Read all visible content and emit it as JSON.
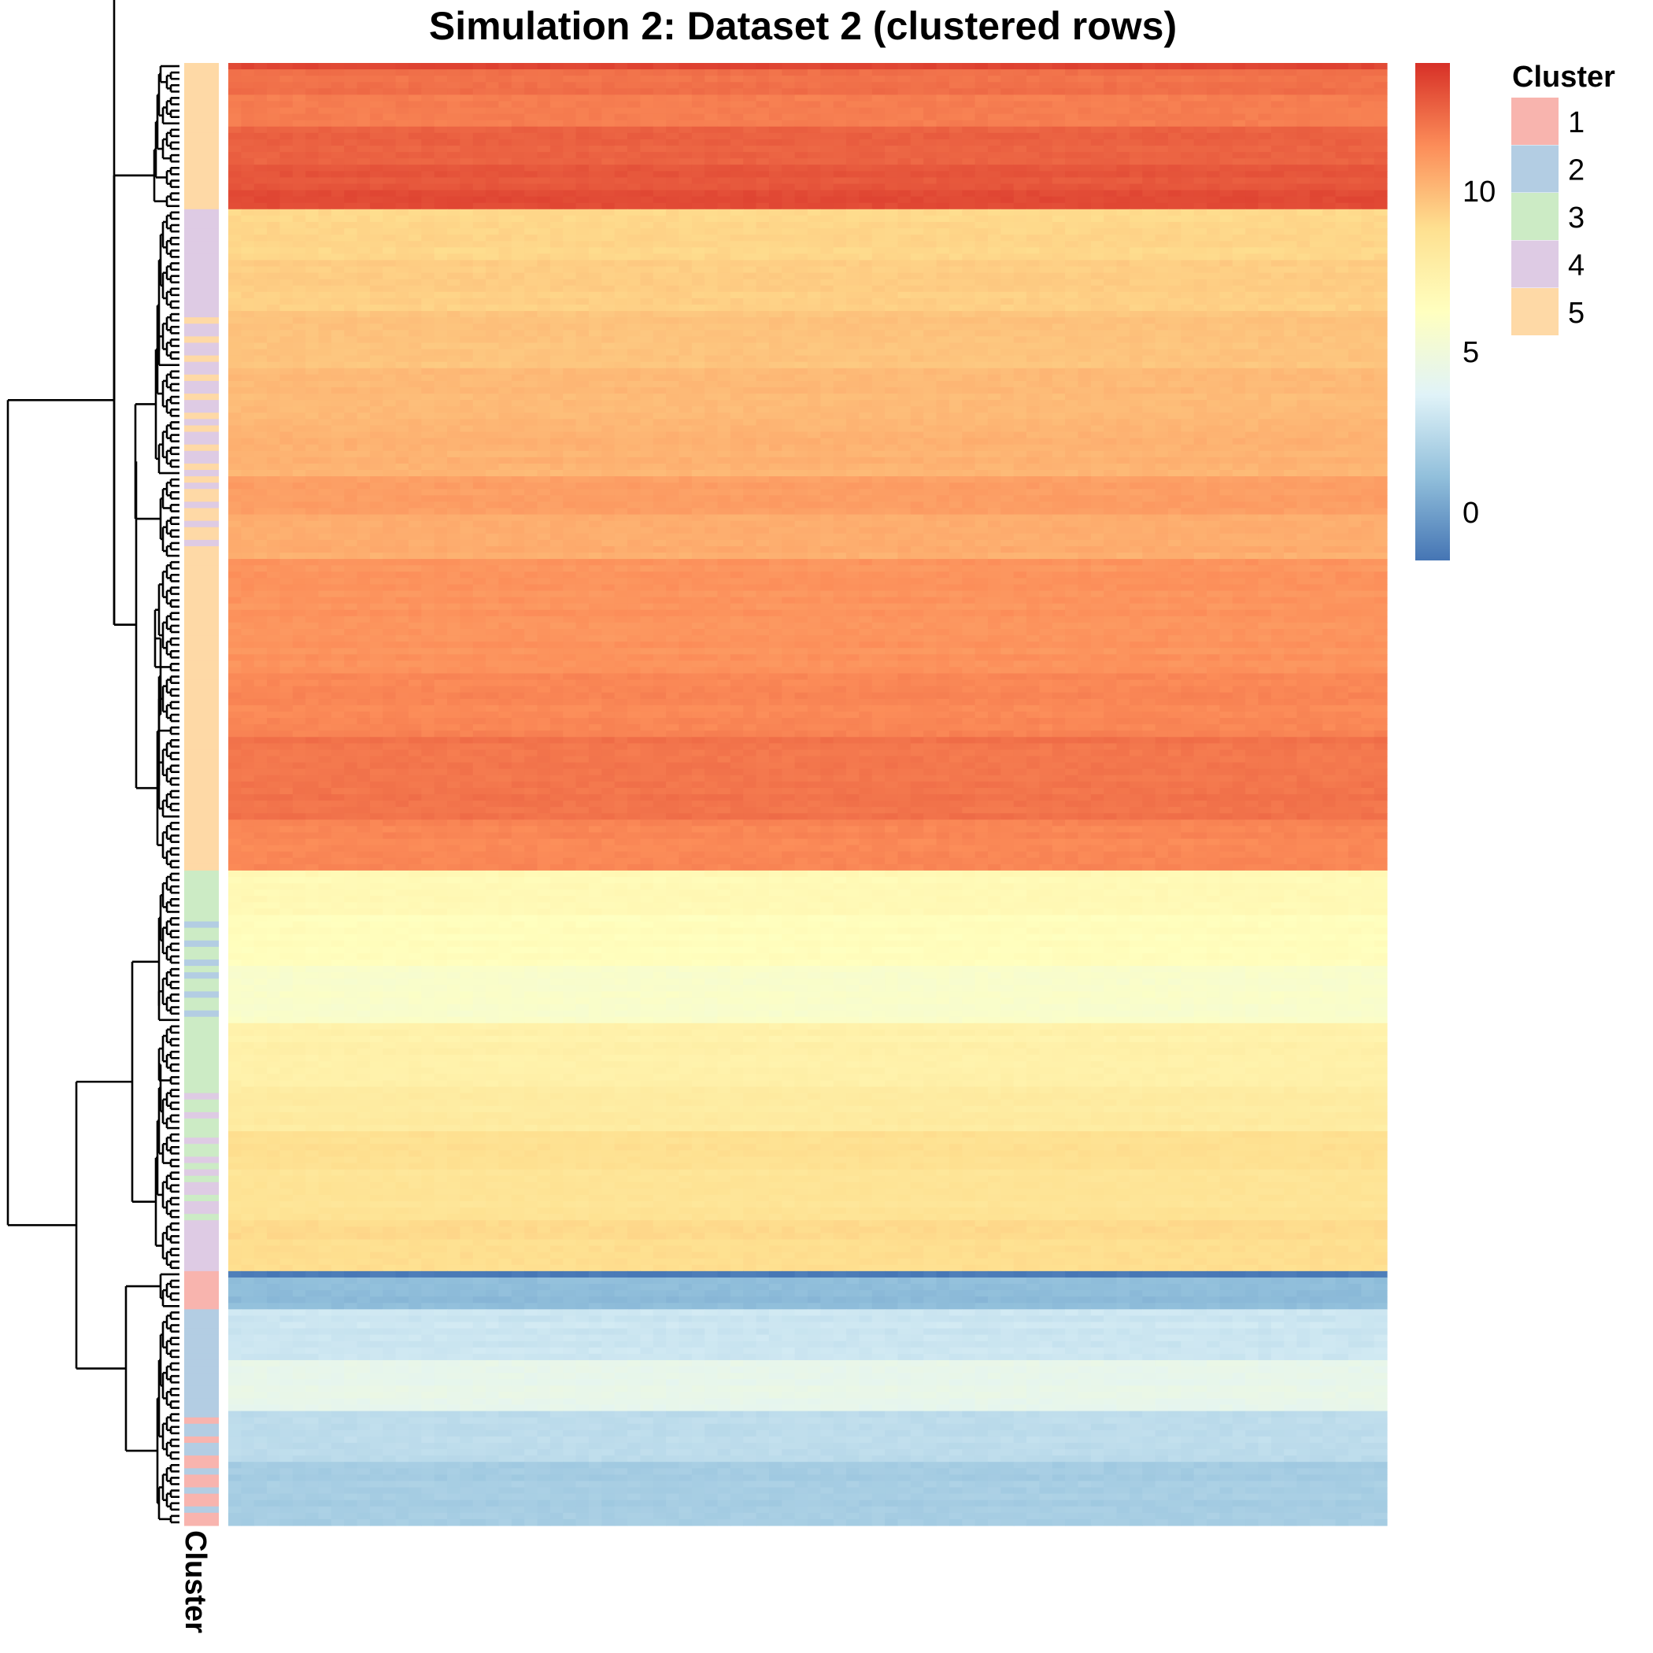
{
  "chart_data": {
    "type": "heatmap",
    "title": "Simulation 2: Dataset 2 (clustered rows)",
    "annotation_label": "Cluster",
    "row_clustering": true,
    "dendrogram": "left",
    "colorbar": {
      "ticks": [
        0,
        5,
        10
      ],
      "range": [
        -1.5,
        14
      ],
      "colors": [
        "#4575b4",
        "#91bfdb",
        "#e0f3f8",
        "#ffffbf",
        "#fee090",
        "#fc8d59",
        "#d73027"
      ]
    },
    "legend": {
      "title": "Cluster",
      "position": "top-right",
      "items": [
        {
          "label": "1",
          "color": "#f8b4ae"
        },
        {
          "label": "2",
          "color": "#b3cde3"
        },
        {
          "label": "3",
          "color": "#ccebc5"
        },
        {
          "label": "4",
          "color": "#decbe4"
        },
        {
          "label": "5",
          "color": "#fed9a6"
        }
      ]
    },
    "row_blocks": [
      {
        "count": 1,
        "value": 13.5,
        "cluster": "5"
      },
      {
        "count": 4,
        "value": 12.2,
        "cluster": "5"
      },
      {
        "count": 5,
        "value": 11.8,
        "cluster": "5"
      },
      {
        "count": 6,
        "value": 12.6,
        "cluster": "5"
      },
      {
        "count": 4,
        "value": 12.9,
        "cluster": "5"
      },
      {
        "count": 3,
        "value": 13.3,
        "cluster": "5"
      },
      {
        "count": 8,
        "value": 9.1,
        "cluster": "4"
      },
      {
        "count": 8,
        "value": 9.4,
        "cluster": "4"
      },
      {
        "count": 9,
        "value": 9.7,
        "cluster": "4",
        "mix": "5"
      },
      {
        "count": 8,
        "value": 10.0,
        "cluster": "4",
        "mix": "5"
      },
      {
        "count": 9,
        "value": 10.2,
        "cluster": "4",
        "mix": "5"
      },
      {
        "count": 6,
        "value": 10.9,
        "cluster": "5",
        "mix": "4"
      },
      {
        "count": 7,
        "value": 10.4,
        "cluster": "5",
        "mix": "4"
      },
      {
        "count": 18,
        "value": 11.2,
        "cluster": "5"
      },
      {
        "count": 10,
        "value": 11.6,
        "cluster": "5"
      },
      {
        "count": 13,
        "value": 12.1,
        "cluster": "5"
      },
      {
        "count": 8,
        "value": 11.6,
        "cluster": "5"
      },
      {
        "count": 7,
        "value": 6.7,
        "cluster": "3"
      },
      {
        "count": 8,
        "value": 6.4,
        "cluster": "3",
        "mix": "2"
      },
      {
        "count": 9,
        "value": 5.7,
        "cluster": "3",
        "mix": "2"
      },
      {
        "count": 10,
        "value": 7.4,
        "cluster": "3"
      },
      {
        "count": 7,
        "value": 7.9,
        "cluster": "3",
        "mix": "4"
      },
      {
        "count": 6,
        "value": 8.8,
        "cluster": "3",
        "mix": "4"
      },
      {
        "count": 8,
        "value": 8.5,
        "cluster": "4",
        "mix": "3"
      },
      {
        "count": 8,
        "value": 8.9,
        "cluster": "4"
      },
      {
        "count": 1,
        "value": -1.2,
        "cluster": "1"
      },
      {
        "count": 5,
        "value": 1.0,
        "cluster": "1"
      },
      {
        "count": 8,
        "value": 3.0,
        "cluster": "2"
      },
      {
        "count": 8,
        "value": 4.3,
        "cluster": "2"
      },
      {
        "count": 8,
        "value": 2.5,
        "cluster": "2",
        "mix": "1"
      },
      {
        "count": 10,
        "value": 1.8,
        "cluster": "1",
        "mix": "2"
      }
    ]
  }
}
